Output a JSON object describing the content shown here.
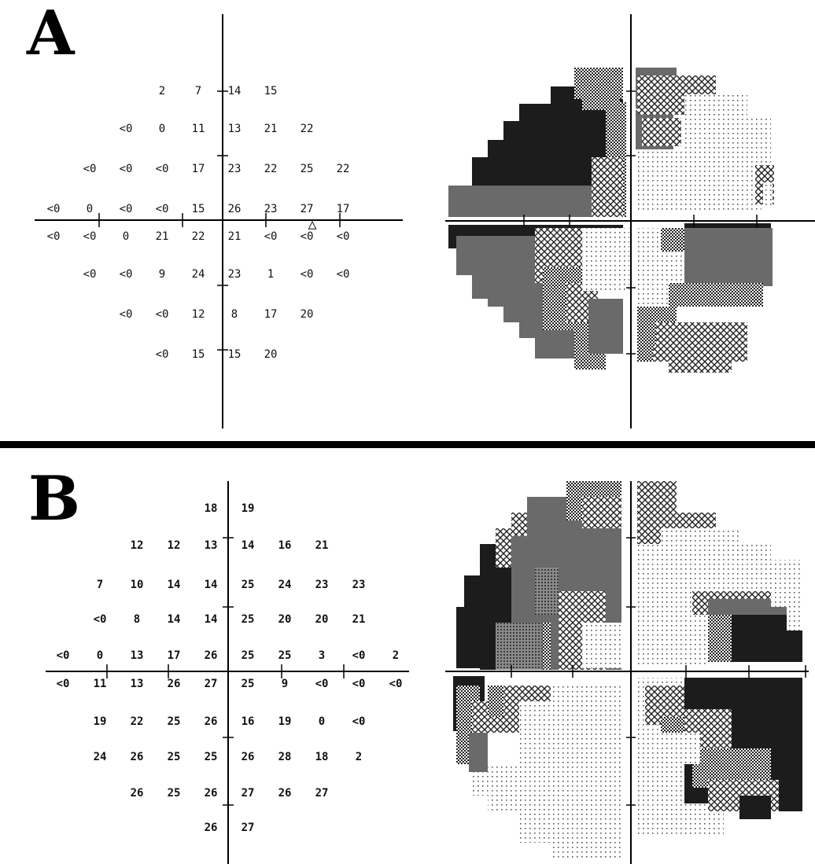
{
  "panels": [
    {
      "label": "A",
      "values": [
        [
          "",
          "",
          "",
          "2",
          "7",
          "14",
          "15",
          "",
          "",
          ""
        ],
        [
          "",
          "",
          "<0",
          "0",
          "11",
          "13",
          "21",
          "22",
          "",
          ""
        ],
        [
          "",
          "<0",
          "<0",
          "<0",
          "17",
          "23",
          "22",
          "25",
          "22",
          ""
        ],
        [
          "<0",
          "0",
          "<0",
          "<0",
          "15",
          "26",
          "23",
          "27",
          "17",
          ""
        ],
        [
          "<0",
          "<0",
          "0",
          "21",
          "22",
          "21",
          "<0",
          "<0",
          "<0",
          ""
        ],
        [
          "",
          "<0",
          "<0",
          "9",
          "24",
          "23",
          "1",
          "<0",
          "<0",
          ""
        ],
        [
          "",
          "",
          "<0",
          "<0",
          "12",
          "8",
          "17",
          "20",
          "",
          ""
        ],
        [
          "",
          "",
          "",
          "<0",
          "15",
          "15",
          "20",
          "",
          "",
          ""
        ]
      ],
      "blind_spot_marker": "△"
    },
    {
      "label": "B",
      "values": [
        [
          "",
          "",
          "",
          "",
          "18",
          "19",
          "",
          "",
          "",
          ""
        ],
        [
          "",
          "",
          "12",
          "12",
          "13",
          "14",
          "16",
          "21",
          "",
          ""
        ],
        [
          "",
          "7",
          "10",
          "14",
          "14",
          "25",
          "24",
          "23",
          "23",
          ""
        ],
        [
          "",
          "<0",
          "8",
          "14",
          "14",
          "25",
          "20",
          "20",
          "21",
          ""
        ],
        [
          "<0",
          "0",
          "13",
          "17",
          "26",
          "25",
          "25",
          "3",
          "<0",
          "2"
        ],
        [
          "<0",
          "11",
          "13",
          "26",
          "27",
          "25",
          "9",
          "<0",
          "<0",
          "<0"
        ],
        [
          "",
          "19",
          "22",
          "25",
          "26",
          "16",
          "19",
          "0",
          "<0",
          ""
        ],
        [
          "",
          "24",
          "26",
          "25",
          "25",
          "26",
          "28",
          "18",
          "2",
          ""
        ],
        [
          "",
          "",
          "26",
          "25",
          "26",
          "27",
          "26",
          "27",
          "",
          ""
        ],
        [
          "",
          "",
          "",
          "",
          "26",
          "27",
          "",
          "",
          "",
          ""
        ]
      ]
    }
  ],
  "colors": {
    "ink": "#000000",
    "paper": "#ffffff",
    "dark_gray": "#3a3a3a",
    "mid_gray": "#6e6e6e"
  }
}
